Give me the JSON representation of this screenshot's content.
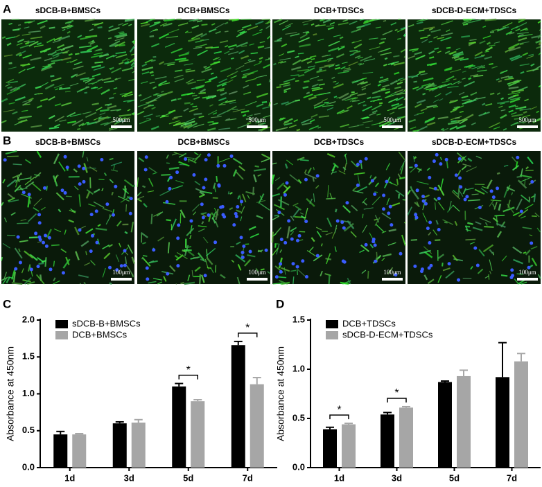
{
  "image_panels": [
    {
      "panel": "A",
      "images": [
        {
          "title": "sDCB-B+BMSCs",
          "scale": "500μm"
        },
        {
          "title": "DCB+BMSCs",
          "scale": "500μm"
        },
        {
          "title": "DCB+TDSCs",
          "scale": "500μm"
        },
        {
          "title": "sDCB-D-ECM+TDSCs",
          "scale": "500μm"
        }
      ]
    },
    {
      "panel": "B",
      "images": [
        {
          "title": "sDCB-B+BMSCs",
          "scale": "100μm"
        },
        {
          "title": "DCB+BMSCs",
          "scale": "100μm"
        },
        {
          "title": "DCB+TDSCs",
          "scale": "100μm"
        },
        {
          "title": "sDCB-D-ECM+TDSCs",
          "scale": "100μm"
        }
      ]
    }
  ],
  "chart_data": [
    {
      "type": "bar",
      "panel": "C",
      "y_label": "Absorbance at 450nm",
      "categories": [
        "1d",
        "3d",
        "5d",
        "7d"
      ],
      "series": [
        {
          "name": "sDCB-B+BMSCs",
          "color": "#000000",
          "values": [
            0.45,
            0.6,
            1.1,
            1.66
          ],
          "errors": [
            0.04,
            0.02,
            0.04,
            0.05
          ]
        },
        {
          "name": "DCB+BMSCs",
          "color": "#a6a6a6",
          "values": [
            0.45,
            0.61,
            0.9,
            1.13
          ],
          "errors": [
            0.01,
            0.04,
            0.02,
            0.09
          ]
        }
      ],
      "ylim": [
        0,
        2
      ],
      "yticks": [
        {
          "value": 0,
          "label": "0.0"
        },
        0.5,
        {
          "value": 1,
          "label": "1.0"
        },
        1.5,
        {
          "value": 2,
          "label": "2.0"
        }
      ],
      "significance": [
        {
          "category": "5d",
          "label": "*"
        },
        {
          "category": "7d",
          "label": "*"
        }
      ],
      "legend": "top-left"
    },
    {
      "type": "bar",
      "panel": "D",
      "y_label": "Absorbance at 450nm",
      "categories": [
        "1d",
        "3d",
        "5d",
        "7d"
      ],
      "series": [
        {
          "name": "DCB+TDSCs",
          "color": "#000000",
          "values": [
            0.39,
            0.54,
            0.87,
            0.92
          ],
          "errors": [
            0.02,
            0.02,
            0.01,
            0.35
          ]
        },
        {
          "name": "sDCB-D-ECM+TDSCs",
          "color": "#a6a6a6",
          "values": [
            0.44,
            0.61,
            0.93,
            1.08
          ],
          "errors": [
            0.01,
            0.01,
            0.06,
            0.08
          ]
        }
      ],
      "ylim": [
        0,
        1.5
      ],
      "yticks": [
        {
          "value": 0,
          "label": "0.0"
        },
        0.5,
        {
          "value": 1,
          "label": "1.0"
        },
        1.5
      ],
      "significance": [
        {
          "category": "1d",
          "label": "*"
        },
        {
          "category": "3d",
          "label": "*"
        }
      ],
      "legend": "top-left"
    }
  ]
}
